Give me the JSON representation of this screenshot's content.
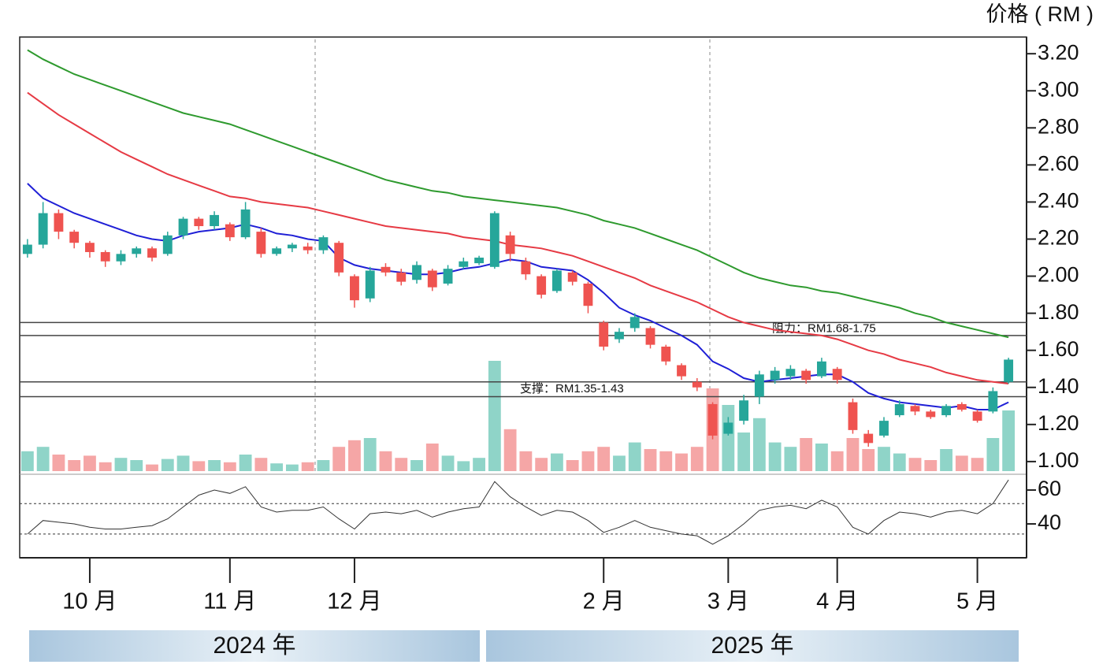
{
  "chart_data": {
    "type": "candlestick",
    "axis_title": "价格 ( RM )",
    "categories": [
      null,
      null,
      null,
      null,
      "10 月",
      null,
      null,
      null,
      null,
      null,
      null,
      null,
      null,
      "11 月",
      null,
      null,
      null,
      null,
      null,
      null,
      null,
      "12 月",
      null,
      null,
      null,
      null,
      null,
      null,
      null,
      null,
      null,
      null,
      null,
      null,
      null,
      null,
      null,
      "2 月",
      null,
      null,
      null,
      null,
      null,
      null,
      null,
      "3 月",
      null,
      null,
      null,
      null,
      null,
      null,
      "4 月",
      null,
      null,
      null,
      null,
      null,
      null,
      null,
      null,
      "5 月",
      null,
      null
    ],
    "open": [
      2.12,
      2.17,
      2.34,
      2.24,
      2.18,
      2.13,
      2.08,
      2.12,
      2.15,
      2.12,
      2.22,
      2.31,
      2.27,
      2.28,
      2.21,
      2.24,
      2.12,
      2.15,
      2.16,
      2.14,
      2.18,
      2.0,
      1.88,
      2.05,
      2.02,
      1.98,
      2.03,
      1.96,
      2.05,
      2.07,
      2.05,
      2.22,
      2.08,
      2.0,
      1.92,
      2.02,
      1.96,
      1.75,
      1.66,
      1.72,
      1.72,
      1.62,
      1.52,
      1.43,
      1.31,
      1.15,
      1.22,
      1.35,
      1.44,
      1.46,
      1.49,
      1.46,
      1.5,
      1.32,
      1.15,
      1.14,
      1.25,
      1.3,
      1.27,
      1.25,
      1.31,
      1.27,
      1.27,
      1.43
    ],
    "high": [
      2.2,
      2.4,
      2.36,
      2.25,
      2.19,
      2.14,
      2.14,
      2.16,
      2.16,
      2.24,
      2.32,
      2.32,
      2.35,
      2.29,
      2.4,
      2.26,
      2.16,
      2.18,
      2.18,
      2.22,
      2.19,
      2.01,
      2.05,
      2.07,
      2.04,
      2.08,
      2.04,
      2.06,
      2.1,
      2.11,
      2.35,
      2.24,
      2.1,
      2.01,
      2.04,
      2.03,
      1.97,
      1.76,
      1.72,
      1.8,
      1.73,
      1.63,
      1.53,
      1.45,
      1.32,
      1.24,
      1.36,
      1.49,
      1.51,
      1.52,
      1.5,
      1.56,
      1.51,
      1.34,
      1.17,
      1.24,
      1.33,
      1.31,
      1.28,
      1.31,
      1.32,
      1.28,
      1.4,
      1.56
    ],
    "low": [
      2.1,
      2.15,
      2.2,
      2.15,
      2.1,
      2.05,
      2.06,
      2.1,
      2.08,
      2.11,
      2.2,
      2.25,
      2.25,
      2.19,
      2.2,
      2.1,
      2.11,
      2.13,
      2.12,
      2.12,
      2.0,
      1.83,
      1.86,
      2.0,
      1.95,
      1.96,
      1.92,
      1.95,
      2.04,
      2.06,
      2.04,
      2.08,
      1.98,
      1.88,
      1.91,
      1.95,
      1.8,
      1.6,
      1.64,
      1.7,
      1.61,
      1.52,
      1.44,
      1.38,
      1.12,
      1.14,
      1.2,
      1.31,
      1.42,
      1.44,
      1.42,
      1.45,
      1.42,
      1.15,
      1.08,
      1.13,
      1.24,
      1.25,
      1.23,
      1.24,
      1.27,
      1.21,
      1.26,
      1.42
    ],
    "close": [
      2.17,
      2.34,
      2.24,
      2.18,
      2.13,
      2.08,
      2.12,
      2.15,
      2.1,
      2.22,
      2.31,
      2.27,
      2.33,
      2.21,
      2.36,
      2.12,
      2.15,
      2.17,
      2.14,
      2.21,
      2.02,
      1.87,
      2.03,
      2.02,
      1.97,
      2.06,
      1.94,
      2.04,
      2.08,
      2.1,
      2.34,
      2.12,
      2.01,
      1.9,
      2.03,
      1.97,
      1.84,
      1.62,
      1.7,
      1.78,
      1.63,
      1.54,
      1.46,
      1.4,
      1.14,
      1.21,
      1.33,
      1.47,
      1.49,
      1.5,
      1.44,
      1.54,
      1.44,
      1.17,
      1.1,
      1.22,
      1.31,
      1.27,
      1.24,
      1.3,
      1.28,
      1.22,
      1.38,
      1.55
    ],
    "volume": [
      18,
      22,
      15,
      10,
      14,
      8,
      12,
      10,
      6,
      11,
      14,
      9,
      10,
      8,
      15,
      12,
      7,
      6,
      8,
      10,
      22,
      28,
      30,
      18,
      12,
      10,
      25,
      14,
      9,
      12,
      100,
      38,
      18,
      12,
      16,
      10,
      18,
      22,
      14,
      26,
      20,
      18,
      16,
      22,
      75,
      60,
      35,
      48,
      26,
      22,
      30,
      25,
      18,
      30,
      20,
      22,
      16,
      12,
      10,
      20,
      14,
      12,
      30,
      55
    ],
    "up_color": "#26a69a",
    "down_color": "#ef5350",
    "volume_up_color": "#8fd4c8",
    "volume_down_color": "#f5a6a6",
    "ma_lines": [
      {
        "color": "#2e9a2e",
        "values": [
          3.22,
          3.17,
          3.13,
          3.09,
          3.06,
          3.03,
          3.0,
          2.97,
          2.94,
          2.91,
          2.88,
          2.86,
          2.84,
          2.82,
          2.79,
          2.76,
          2.73,
          2.7,
          2.67,
          2.64,
          2.61,
          2.58,
          2.55,
          2.52,
          2.5,
          2.48,
          2.46,
          2.45,
          2.43,
          2.42,
          2.41,
          2.4,
          2.39,
          2.38,
          2.37,
          2.35,
          2.33,
          2.3,
          2.28,
          2.26,
          2.23,
          2.2,
          2.17,
          2.14,
          2.1,
          2.06,
          2.02,
          1.99,
          1.97,
          1.95,
          1.94,
          1.92,
          1.91,
          1.89,
          1.87,
          1.85,
          1.83,
          1.8,
          1.78,
          1.75,
          1.73,
          1.71,
          1.69,
          1.67
        ]
      },
      {
        "color": "#e63a44",
        "values": [
          2.99,
          2.93,
          2.87,
          2.82,
          2.77,
          2.72,
          2.67,
          2.63,
          2.59,
          2.55,
          2.52,
          2.49,
          2.46,
          2.43,
          2.42,
          2.4,
          2.39,
          2.38,
          2.37,
          2.35,
          2.33,
          2.31,
          2.29,
          2.27,
          2.26,
          2.25,
          2.24,
          2.23,
          2.21,
          2.2,
          2.19,
          2.17,
          2.16,
          2.15,
          2.13,
          2.11,
          2.08,
          2.05,
          2.02,
          1.99,
          1.95,
          1.92,
          1.89,
          1.86,
          1.82,
          1.78,
          1.75,
          1.73,
          1.71,
          1.7,
          1.69,
          1.68,
          1.66,
          1.63,
          1.6,
          1.58,
          1.55,
          1.53,
          1.51,
          1.48,
          1.46,
          1.44,
          1.43,
          1.42
        ]
      },
      {
        "color": "#1f1fd6",
        "values": [
          2.5,
          2.42,
          2.38,
          2.34,
          2.31,
          2.28,
          2.25,
          2.22,
          2.2,
          2.19,
          2.22,
          2.24,
          2.25,
          2.26,
          2.28,
          2.26,
          2.23,
          2.22,
          2.2,
          2.19,
          2.1,
          2.06,
          2.04,
          2.03,
          2.02,
          2.01,
          2.01,
          2.02,
          2.04,
          2.05,
          2.07,
          2.09,
          2.08,
          2.05,
          2.04,
          2.03,
          1.98,
          1.91,
          1.83,
          1.79,
          1.76,
          1.72,
          1.68,
          1.63,
          1.54,
          1.5,
          1.45,
          1.43,
          1.44,
          1.45,
          1.46,
          1.47,
          1.47,
          1.43,
          1.37,
          1.34,
          1.32,
          1.31,
          1.3,
          1.29,
          1.3,
          1.28,
          1.28,
          1.32
        ]
      }
    ],
    "hlines": [
      1.75,
      1.68,
      1.43,
      1.35
    ],
    "annotations": [
      "阻力：RM1.68-1.75",
      "支撑：RM1.35-1.43"
    ],
    "ylim": [
      0.94,
      3.29
    ],
    "yticks": [
      {
        "value": 3.2,
        "label": "3.20"
      },
      {
        "value": 3.0,
        "label": "3.00"
      },
      {
        "value": 2.8,
        "label": "2.80"
      },
      {
        "value": 2.6,
        "label": "2.60"
      },
      {
        "value": 2.4,
        "label": "2.40"
      },
      {
        "value": 2.2,
        "label": "2.20"
      },
      {
        "value": 2.0,
        "label": "2.00"
      },
      {
        "value": 1.8,
        "label": "1.80"
      },
      {
        "value": 1.6,
        "label": "1.60"
      },
      {
        "value": 1.4,
        "label": "1.40"
      },
      {
        "value": 1.2,
        "label": "1.20"
      },
      {
        "value": 1.0,
        "label": "1.00"
      }
    ],
    "rsi": {
      "color": "#333333",
      "values": [
        34,
        42,
        41,
        40,
        38,
        37,
        37,
        38,
        39,
        43,
        50,
        57,
        60,
        58,
        62,
        50,
        47,
        48,
        48,
        50,
        43,
        37,
        46,
        47,
        46,
        48,
        44,
        47,
        49,
        50,
        65,
        56,
        50,
        45,
        48,
        47,
        42,
        35,
        38,
        42,
        38,
        36,
        34,
        33,
        28,
        33,
        40,
        48,
        50,
        51,
        49,
        54,
        50,
        38,
        34,
        42,
        47,
        46,
        44,
        47,
        48,
        46,
        52,
        66
      ],
      "ylim": [
        20,
        68.4
      ],
      "yticks": [
        60,
        40
      ],
      "levels": [
        52,
        34
      ]
    },
    "year_labels": [
      "2024 年",
      "2025 年"
    ]
  }
}
